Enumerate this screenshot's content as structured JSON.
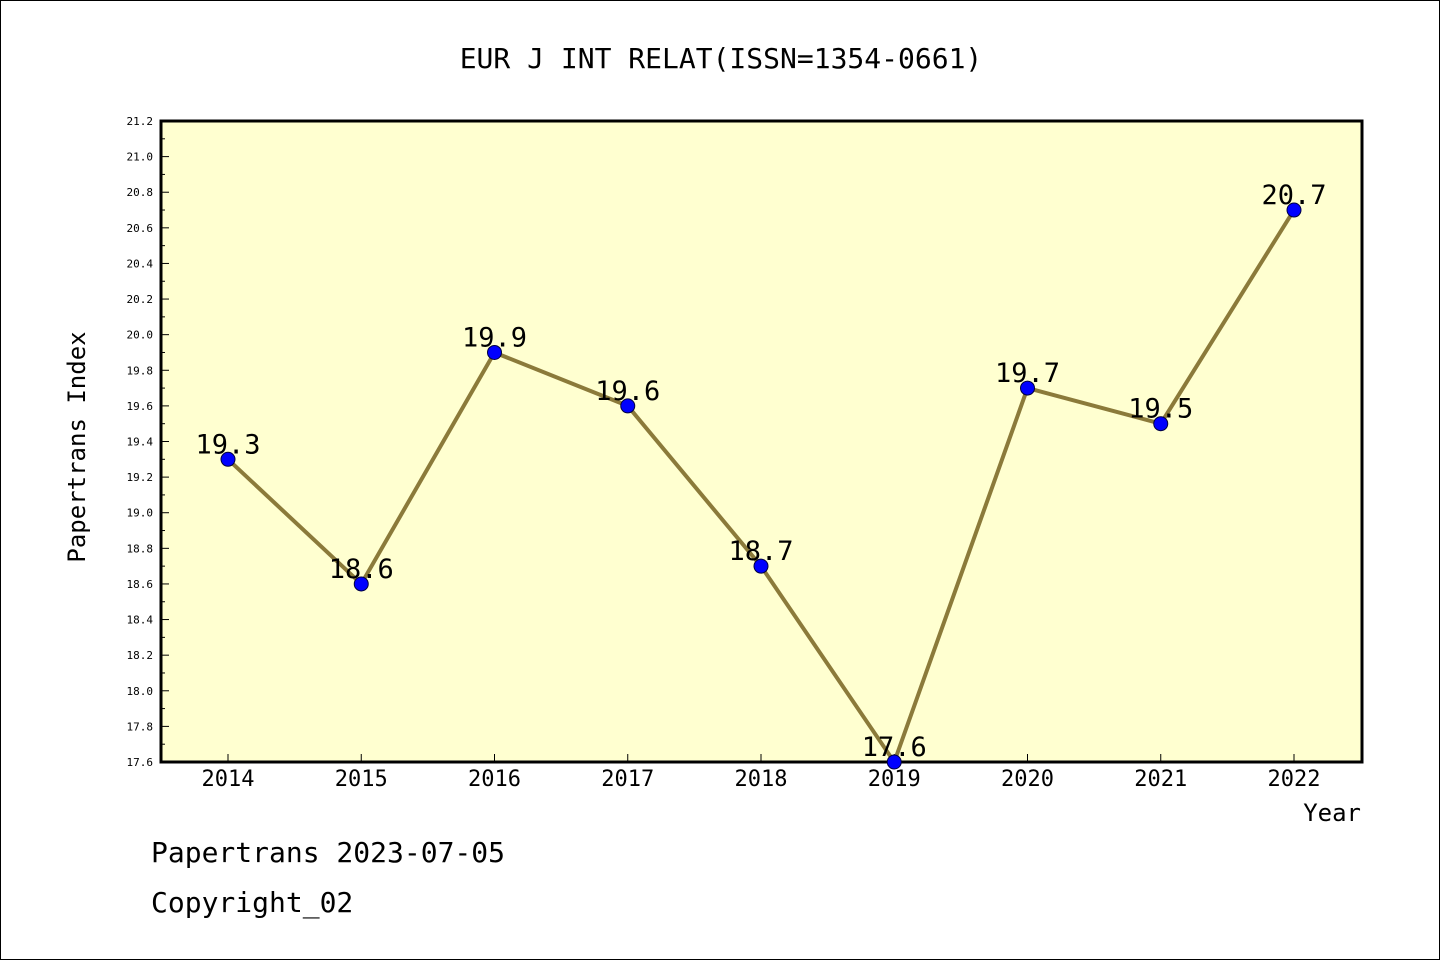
{
  "chart_data": {
    "type": "line",
    "title": "EUR J INT RELAT(ISSN=1354-0661)",
    "xlabel": "Year",
    "ylabel": "Papertrans Index",
    "categories": [
      "2014",
      "2015",
      "2016",
      "2017",
      "2018",
      "2019",
      "2020",
      "2021",
      "2022"
    ],
    "series": [
      {
        "values": [
          19.3,
          18.6,
          19.9,
          19.6,
          18.7,
          17.6,
          19.7,
          19.5,
          20.7
        ]
      }
    ],
    "data_labels": [
      "19.3",
      "18.6",
      "19.9",
      "19.6",
      "18.7",
      "17.6",
      "19.7",
      "19.5",
      "20.7"
    ],
    "ylim": [
      17.6,
      21.2
    ],
    "yticks": [
      "17.6",
      "17.8",
      "18.0",
      "18.2",
      "18.4",
      "18.6",
      "18.8",
      "19.0",
      "19.2",
      "19.4",
      "19.6",
      "19.8",
      "20.0",
      "20.2",
      "20.4",
      "20.6",
      "20.8",
      "21.0",
      "21.2"
    ],
    "grid": false,
    "legend": "none",
    "colors": {
      "plot_background": "#ffffd0",
      "line": "#8b7a3a",
      "marker": "#0000ff"
    }
  },
  "footer": {
    "line1": "Papertrans 2023-07-05",
    "line2": "Copyright_02"
  }
}
